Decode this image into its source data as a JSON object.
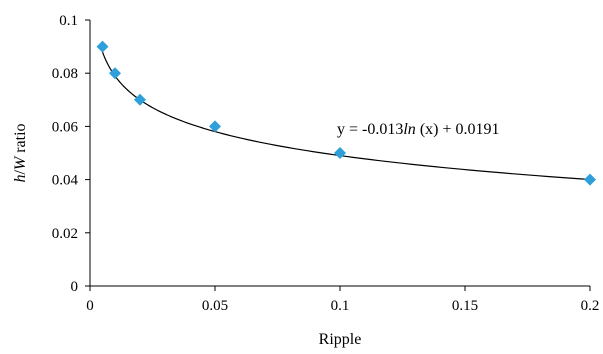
{
  "chart_data": {
    "type": "scatter",
    "title": "",
    "xlabel": "Ripple",
    "ylabel": {
      "h": "h",
      "sep": "/",
      "w": "W",
      "rest": " ratio"
    },
    "xlim": [
      0,
      0.2
    ],
    "ylim": [
      0,
      0.1
    ],
    "x_ticks": [
      "0",
      "0.05",
      "0.1",
      "0.15",
      "0.2"
    ],
    "x_tick_values": [
      0,
      0.05,
      0.1,
      0.15,
      0.2
    ],
    "y_ticks": [
      "0",
      "0.02",
      "0.04",
      "0.06",
      "0.08",
      "0.1"
    ],
    "y_tick_values": [
      0,
      0.02,
      0.04,
      0.06,
      0.08,
      0.1
    ],
    "grid": false,
    "legend": "none",
    "marker_color": "#2E9FD8",
    "marker_shape": "diamond",
    "series": [
      {
        "x": [
          0.005,
          0.01,
          0.02,
          0.05,
          0.1,
          0.2
        ],
        "y": [
          0.09,
          0.08,
          0.07,
          0.06,
          0.05,
          0.04
        ]
      }
    ],
    "trendline": {
      "type": "logarithmic",
      "a": -0.013,
      "b": 0.0191,
      "x_range": [
        0.005,
        0.2
      ],
      "color": "#000000",
      "label": {
        "prefix": "y = -0.013",
        "fn": "ln",
        "suffix": " (x) + 0.0191"
      }
    }
  }
}
